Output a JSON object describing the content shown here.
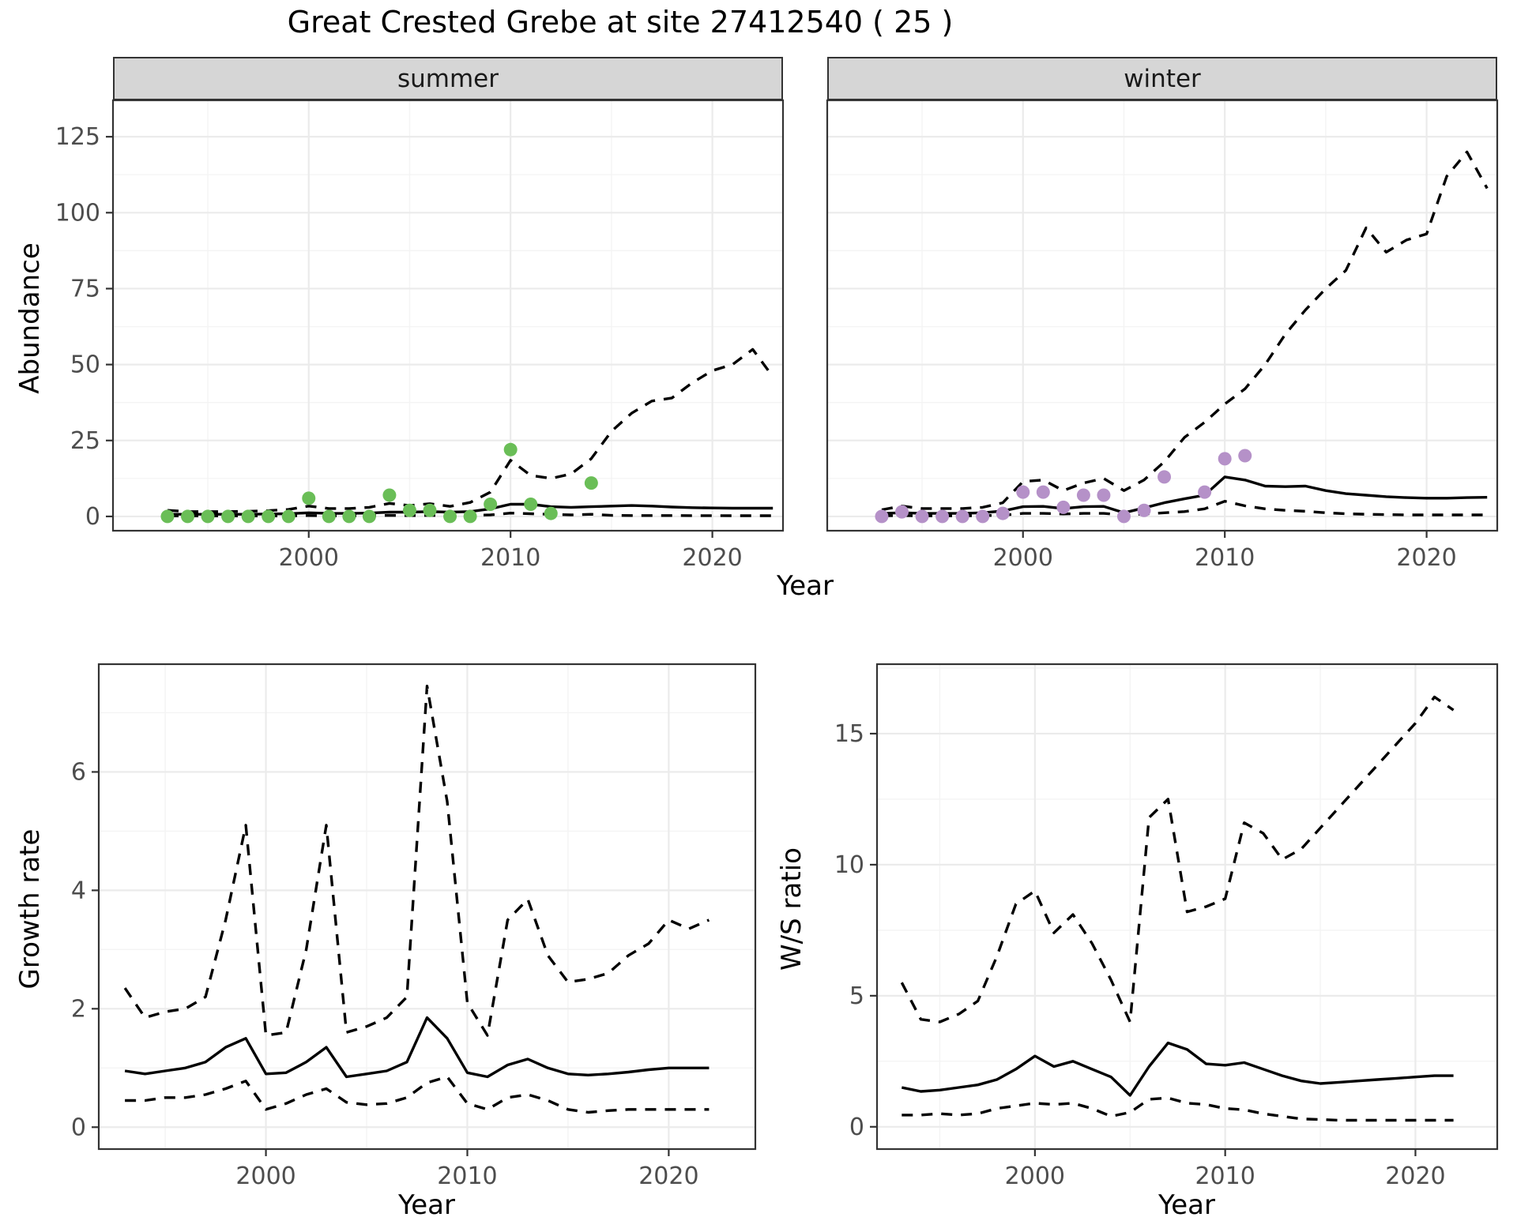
{
  "title": "Great Crested Grebe at site 27412540 ( 25 )",
  "facets": {
    "summer": "summer",
    "winter": "winter"
  },
  "axis_titles": {
    "abundance": "Abundance",
    "year_top": "Year",
    "growth_rate": "Growth rate",
    "ws_ratio": "W/S ratio",
    "year_bottom_left": "Year",
    "year_bottom_right": "Year"
  },
  "colors": {
    "summer_points": "#6abe57",
    "winter_points": "#b591c8",
    "line": "#000000",
    "grid_major": "#ebebeb",
    "grid_minor": "#f4f4f4",
    "strip_bg": "#d6d6d6",
    "panel_border": "#333333",
    "tick_label": "#4d4d4d",
    "panel_bg": "#ffffff"
  },
  "chart_data": [
    {
      "id": "abundance-summer",
      "type": "line",
      "facet_label": "summer",
      "xlabel": "Year",
      "ylabel": "Abundance",
      "xlim": [
        1990.3,
        2023.5
      ],
      "ylim": [
        -4.7,
        137
      ],
      "x_major": [
        2000,
        2010,
        2020
      ],
      "x_minor": [
        1995,
        2005,
        2015
      ],
      "y_major": [
        0,
        25,
        50,
        75,
        100,
        125
      ],
      "y_minor": [
        12.5,
        37.5,
        62.5,
        87.5,
        112.5
      ],
      "years": [
        1993,
        1994,
        1995,
        1996,
        1997,
        1998,
        1999,
        2000,
        2001,
        2002,
        2003,
        2004,
        2005,
        2006,
        2007,
        2008,
        2009,
        2010,
        2011,
        2012,
        2013,
        2014,
        2015,
        2016,
        2017,
        2018,
        2019,
        2020,
        2021,
        2022,
        2023
      ],
      "series": [
        {
          "name": "fit",
          "style": "solid",
          "values": [
            0.7,
            0.7,
            0.7,
            0.7,
            0.7,
            0.8,
            0.9,
            1.2,
            1.0,
            1.0,
            1.1,
            1.4,
            1.4,
            1.6,
            1.4,
            1.6,
            2.5,
            4.0,
            4.0,
            3.2,
            3.0,
            3.2,
            3.4,
            3.6,
            3.4,
            3.1,
            2.9,
            2.8,
            2.7,
            2.7,
            2.7
          ]
        },
        {
          "name": "upper_ci",
          "style": "dashed",
          "values": [
            2.0,
            1.6,
            1.6,
            1.6,
            1.7,
            1.9,
            2.3,
            3.4,
            2.6,
            2.6,
            3.0,
            4.3,
            3.6,
            4.2,
            3.3,
            4.6,
            8.0,
            18.5,
            13.5,
            12.5,
            14.0,
            19.0,
            28.0,
            34.0,
            38.0,
            39.0,
            44.0,
            48.0,
            50.0,
            55.0,
            46.0
          ]
        },
        {
          "name": "lower_ci",
          "style": "dashed",
          "values": [
            0.15,
            0.15,
            0.15,
            0.15,
            0.15,
            0.15,
            0.2,
            0.3,
            0.2,
            0.2,
            0.25,
            0.35,
            0.3,
            0.35,
            0.3,
            0.35,
            0.5,
            1.1,
            0.9,
            0.7,
            0.5,
            0.7,
            0.35,
            0.3,
            0.3,
            0.28,
            0.27,
            0.26,
            0.25,
            0.25,
            0.25
          ]
        }
      ],
      "points": [
        [
          1993,
          0
        ],
        [
          1994,
          0
        ],
        [
          1995,
          0
        ],
        [
          1996,
          0
        ],
        [
          1997,
          0
        ],
        [
          1998,
          0
        ],
        [
          1999,
          0
        ],
        [
          2000,
          6
        ],
        [
          2001,
          0
        ],
        [
          2002,
          0
        ],
        [
          2003,
          0
        ],
        [
          2004,
          7
        ],
        [
          2005,
          2
        ],
        [
          2006,
          2
        ],
        [
          2007,
          0
        ],
        [
          2008,
          0
        ],
        [
          2009,
          4
        ],
        [
          2010,
          22
        ],
        [
          2011,
          4
        ],
        [
          2012,
          1
        ],
        [
          2014,
          11
        ]
      ],
      "point_color": "#6abe57"
    },
    {
      "id": "abundance-winter",
      "type": "line",
      "facet_label": "winter",
      "xlabel": "Year",
      "ylabel": "Abundance",
      "xlim": [
        1990.3,
        2023.5
      ],
      "ylim": [
        -4.7,
        137
      ],
      "x_major": [
        2000,
        2010,
        2020
      ],
      "x_minor": [
        1995,
        2005,
        2015
      ],
      "y_major": [
        0,
        25,
        50,
        75,
        100,
        125
      ],
      "y_minor": [
        12.5,
        37.5,
        62.5,
        87.5,
        112.5
      ],
      "years": [
        1993,
        1994,
        1995,
        1996,
        1997,
        1998,
        1999,
        2000,
        2001,
        2002,
        2003,
        2004,
        2005,
        2006,
        2007,
        2008,
        2009,
        2010,
        2011,
        2012,
        2013,
        2014,
        2015,
        2016,
        2017,
        2018,
        2019,
        2020,
        2021,
        2022,
        2023
      ],
      "series": [
        {
          "name": "fit",
          "style": "solid",
          "values": [
            1.0,
            1.2,
            1.0,
            1.0,
            1.0,
            1.2,
            1.8,
            3.2,
            3.3,
            2.6,
            3.2,
            3.3,
            1.2,
            2.8,
            4.5,
            5.8,
            7.0,
            13.0,
            12.0,
            10.0,
            9.8,
            10.0,
            8.5,
            7.5,
            7.0,
            6.5,
            6.2,
            6.0,
            6.0,
            6.2,
            6.3
          ]
        },
        {
          "name": "upper_ci",
          "style": "dashed",
          "values": [
            2.2,
            3.4,
            2.6,
            2.6,
            2.6,
            3.0,
            4.5,
            11.5,
            12.0,
            8.5,
            11.0,
            12.5,
            8.5,
            12.0,
            18.0,
            26.0,
            31.0,
            37.0,
            42.0,
            50.0,
            60.0,
            68.0,
            75.0,
            81.0,
            95.0,
            87.0,
            91.0,
            93.0,
            112.0,
            120.0,
            108.0
          ]
        },
        {
          "name": "lower_ci",
          "style": "dashed",
          "values": [
            0.2,
            0.3,
            0.2,
            0.2,
            0.2,
            0.25,
            0.4,
            1.0,
            1.0,
            0.8,
            1.0,
            1.0,
            0.5,
            0.8,
            1.2,
            1.6,
            2.5,
            5.0,
            3.5,
            2.5,
            2.0,
            1.7,
            1.2,
            0.9,
            0.7,
            0.6,
            0.5,
            0.5,
            0.5,
            0.5,
            0.5
          ]
        }
      ],
      "points": [
        [
          1993,
          0
        ],
        [
          1994,
          1.5
        ],
        [
          1995,
          0
        ],
        [
          1996,
          0
        ],
        [
          1997,
          0
        ],
        [
          1998,
          0
        ],
        [
          1999,
          1
        ],
        [
          2000,
          8
        ],
        [
          2001,
          8
        ],
        [
          2002,
          3
        ],
        [
          2003,
          7
        ],
        [
          2004,
          7
        ],
        [
          2005,
          0
        ],
        [
          2006,
          2
        ],
        [
          2007,
          13
        ],
        [
          2009,
          8
        ],
        [
          2010,
          19
        ],
        [
          2011,
          20
        ]
      ],
      "point_color": "#b591c8"
    },
    {
      "id": "growth-rate",
      "type": "line",
      "xlabel": "Year",
      "ylabel": "Growth rate",
      "xlim": [
        1991.7,
        2024.3
      ],
      "ylim": [
        -0.37,
        7.82
      ],
      "x_major": [
        2000,
        2010,
        2020
      ],
      "x_minor": [
        1995,
        2005,
        2015
      ],
      "y_major": [
        0,
        2,
        4,
        6
      ],
      "y_minor": [
        1,
        3,
        5,
        7
      ],
      "years": [
        1993,
        1994,
        1995,
        1996,
        1997,
        1998,
        1999,
        2000,
        2001,
        2002,
        2003,
        2004,
        2005,
        2006,
        2007,
        2008,
        2009,
        2010,
        2011,
        2012,
        2013,
        2014,
        2015,
        2016,
        2017,
        2018,
        2019,
        2020,
        2021,
        2022
      ],
      "series": [
        {
          "name": "fit",
          "style": "solid",
          "values": [
            0.95,
            0.9,
            0.95,
            1.0,
            1.1,
            1.35,
            1.5,
            0.9,
            0.92,
            1.1,
            1.35,
            0.85,
            0.9,
            0.95,
            1.1,
            1.85,
            1.5,
            0.92,
            0.85,
            1.05,
            1.15,
            1.0,
            0.9,
            0.88,
            0.9,
            0.93,
            0.97,
            1.0,
            1.0,
            1.0
          ]
        },
        {
          "name": "upper_ci",
          "style": "dashed",
          "values": [
            2.35,
            1.85,
            1.95,
            2.0,
            2.2,
            3.5,
            5.1,
            1.55,
            1.6,
            3.0,
            5.1,
            1.6,
            1.7,
            1.85,
            2.2,
            7.45,
            5.5,
            2.1,
            1.55,
            3.5,
            3.85,
            2.9,
            2.45,
            2.5,
            2.6,
            2.9,
            3.1,
            3.5,
            3.35,
            3.5
          ]
        },
        {
          "name": "lower_ci",
          "style": "dashed",
          "values": [
            0.45,
            0.45,
            0.5,
            0.5,
            0.55,
            0.65,
            0.78,
            0.3,
            0.4,
            0.55,
            0.65,
            0.42,
            0.38,
            0.4,
            0.5,
            0.75,
            0.85,
            0.4,
            0.3,
            0.5,
            0.55,
            0.45,
            0.3,
            0.25,
            0.28,
            0.3,
            0.3,
            0.3,
            0.3,
            0.3
          ]
        }
      ],
      "points": [],
      "point_color": "#000000"
    },
    {
      "id": "ws-ratio",
      "type": "line",
      "xlabel": "Year",
      "ylabel": "W/S ratio",
      "xlim": [
        1991.7,
        2024.3
      ],
      "ylim": [
        -0.85,
        17.65
      ],
      "x_major": [
        2000,
        2010,
        2020
      ],
      "x_minor": [
        1995,
        2005,
        2015
      ],
      "y_major": [
        0,
        5,
        10,
        15
      ],
      "y_minor": [
        2.5,
        7.5,
        12.5,
        17.5
      ],
      "years": [
        1993,
        1994,
        1995,
        1996,
        1997,
        1998,
        1999,
        2000,
        2001,
        2002,
        2003,
        2004,
        2005,
        2006,
        2007,
        2008,
        2009,
        2010,
        2011,
        2012,
        2013,
        2014,
        2015,
        2016,
        2017,
        2018,
        2019,
        2020,
        2021,
        2022
      ],
      "series": [
        {
          "name": "fit",
          "style": "solid",
          "values": [
            1.5,
            1.35,
            1.4,
            1.5,
            1.6,
            1.8,
            2.2,
            2.7,
            2.3,
            2.5,
            2.2,
            1.9,
            1.2,
            2.3,
            3.2,
            2.95,
            2.4,
            2.35,
            2.45,
            2.2,
            1.95,
            1.75,
            1.65,
            1.7,
            1.75,
            1.8,
            1.85,
            1.9,
            1.95,
            1.95
          ]
        },
        {
          "name": "upper_ci",
          "style": "dashed",
          "values": [
            5.5,
            4.1,
            4.0,
            4.3,
            4.8,
            6.5,
            8.5,
            9.0,
            7.4,
            8.1,
            7.0,
            5.6,
            4.0,
            11.8,
            12.5,
            8.2,
            8.4,
            8.7,
            11.6,
            11.2,
            10.2,
            10.6,
            11.4,
            12.2,
            13.0,
            13.8,
            14.6,
            15.4,
            16.4,
            15.9
          ]
        },
        {
          "name": "lower_ci",
          "style": "dashed",
          "values": [
            0.45,
            0.45,
            0.5,
            0.45,
            0.5,
            0.7,
            0.8,
            0.9,
            0.85,
            0.9,
            0.7,
            0.4,
            0.55,
            1.05,
            1.1,
            0.9,
            0.85,
            0.7,
            0.65,
            0.5,
            0.4,
            0.3,
            0.28,
            0.25,
            0.25,
            0.25,
            0.25,
            0.25,
            0.25,
            0.25
          ]
        }
      ],
      "points": [],
      "point_color": "#000000"
    }
  ]
}
